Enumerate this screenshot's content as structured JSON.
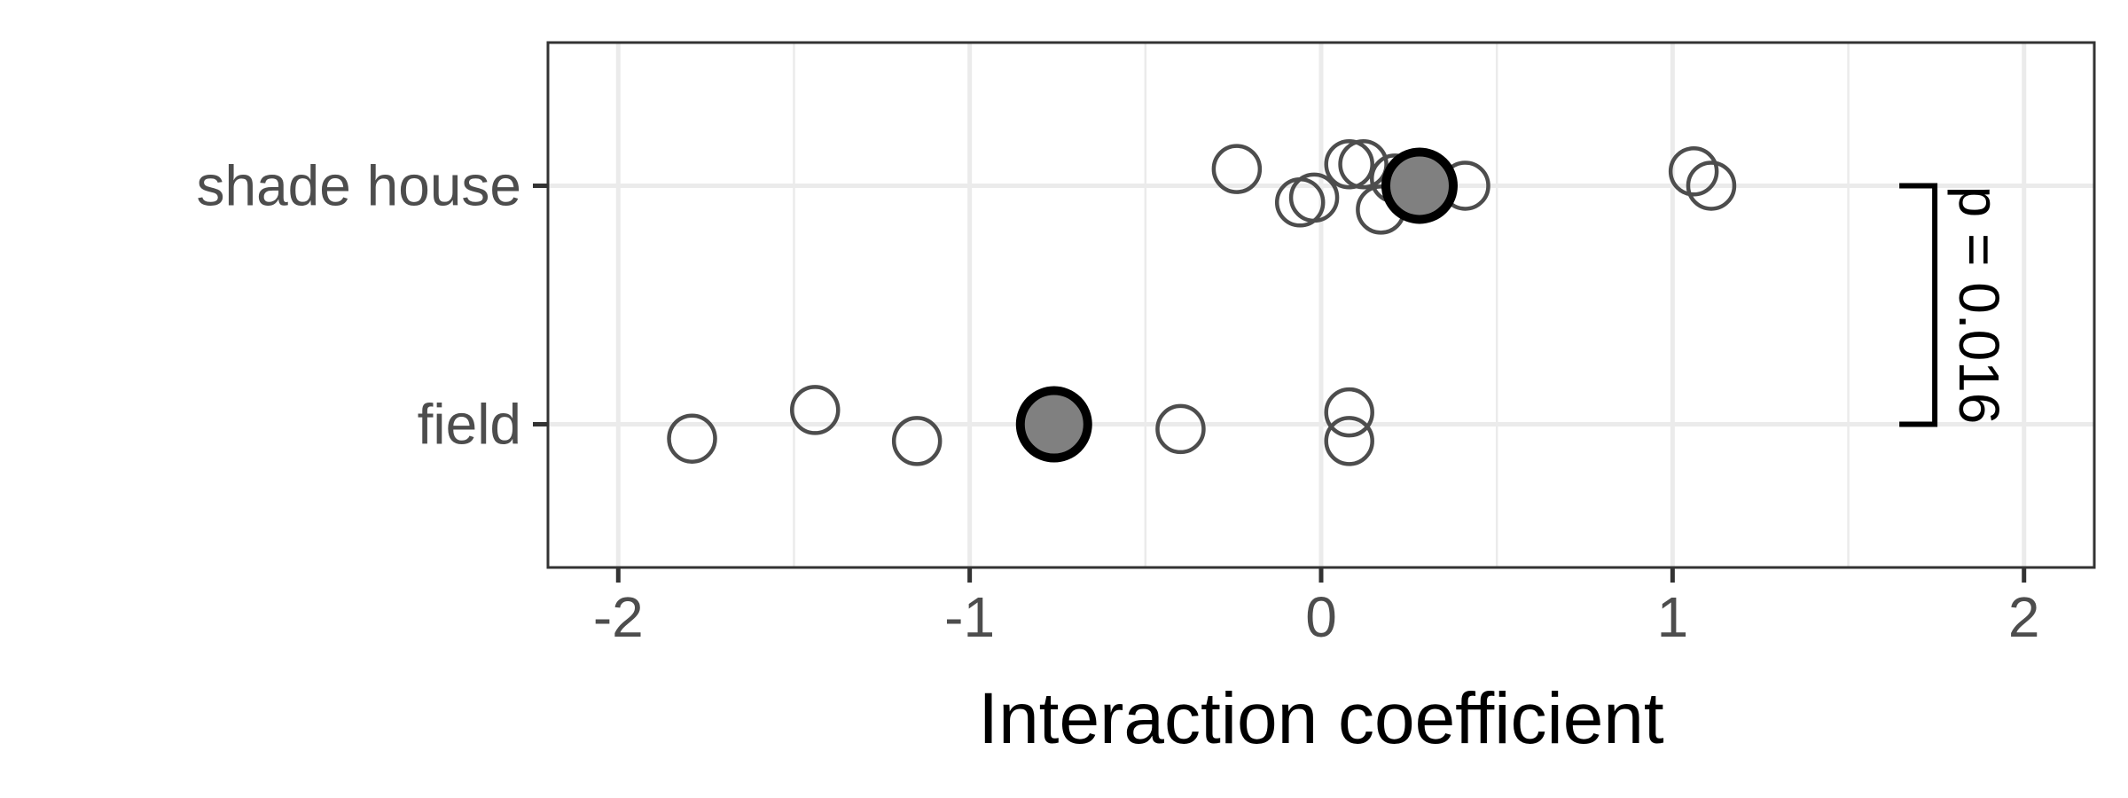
{
  "chart_data": {
    "type": "scatter",
    "title": "",
    "xlabel": "Interaction coefficient",
    "ylabel": "",
    "xlim": [
      -2.2,
      2.2
    ],
    "x_ticks": [
      -2,
      -1,
      0,
      1,
      2
    ],
    "x_tick_labels": [
      "-2",
      "-1",
      "0",
      "1",
      "2"
    ],
    "categories": [
      "field",
      "shade house"
    ],
    "grid": true,
    "legend": "none",
    "colors": {
      "open_point_stroke": "#4d4d4d",
      "mean_fill": "#808080",
      "mean_stroke": "#000000",
      "grid": "#ebebeb",
      "panel_border": "#333333"
    },
    "groups": [
      {
        "category": "shade house",
        "points": [
          {
            "x": -0.24,
            "jitter": 0.07
          },
          {
            "x": -0.06,
            "jitter": -0.07
          },
          {
            "x": -0.02,
            "jitter": -0.05
          },
          {
            "x": 0.08,
            "jitter": 0.09
          },
          {
            "x": 0.12,
            "jitter": 0.09
          },
          {
            "x": 0.17,
            "jitter": -0.1
          },
          {
            "x": 0.21,
            "jitter": 0.03
          },
          {
            "x": 0.41,
            "jitter": 0.0
          },
          {
            "x": 1.06,
            "jitter": 0.06
          },
          {
            "x": 1.11,
            "jitter": 0.0
          }
        ],
        "mean": 0.28
      },
      {
        "category": "field",
        "points": [
          {
            "x": -1.79,
            "jitter": -0.06
          },
          {
            "x": -1.44,
            "jitter": 0.06
          },
          {
            "x": -1.15,
            "jitter": -0.07
          },
          {
            "x": -0.4,
            "jitter": -0.02
          },
          {
            "x": 0.08,
            "jitter": 0.05
          },
          {
            "x": 0.08,
            "jitter": -0.07
          }
        ],
        "mean": -0.76
      }
    ],
    "annotation": {
      "text": "p = 0.016",
      "x": 1.62,
      "from": "field",
      "to": "shade house"
    }
  }
}
